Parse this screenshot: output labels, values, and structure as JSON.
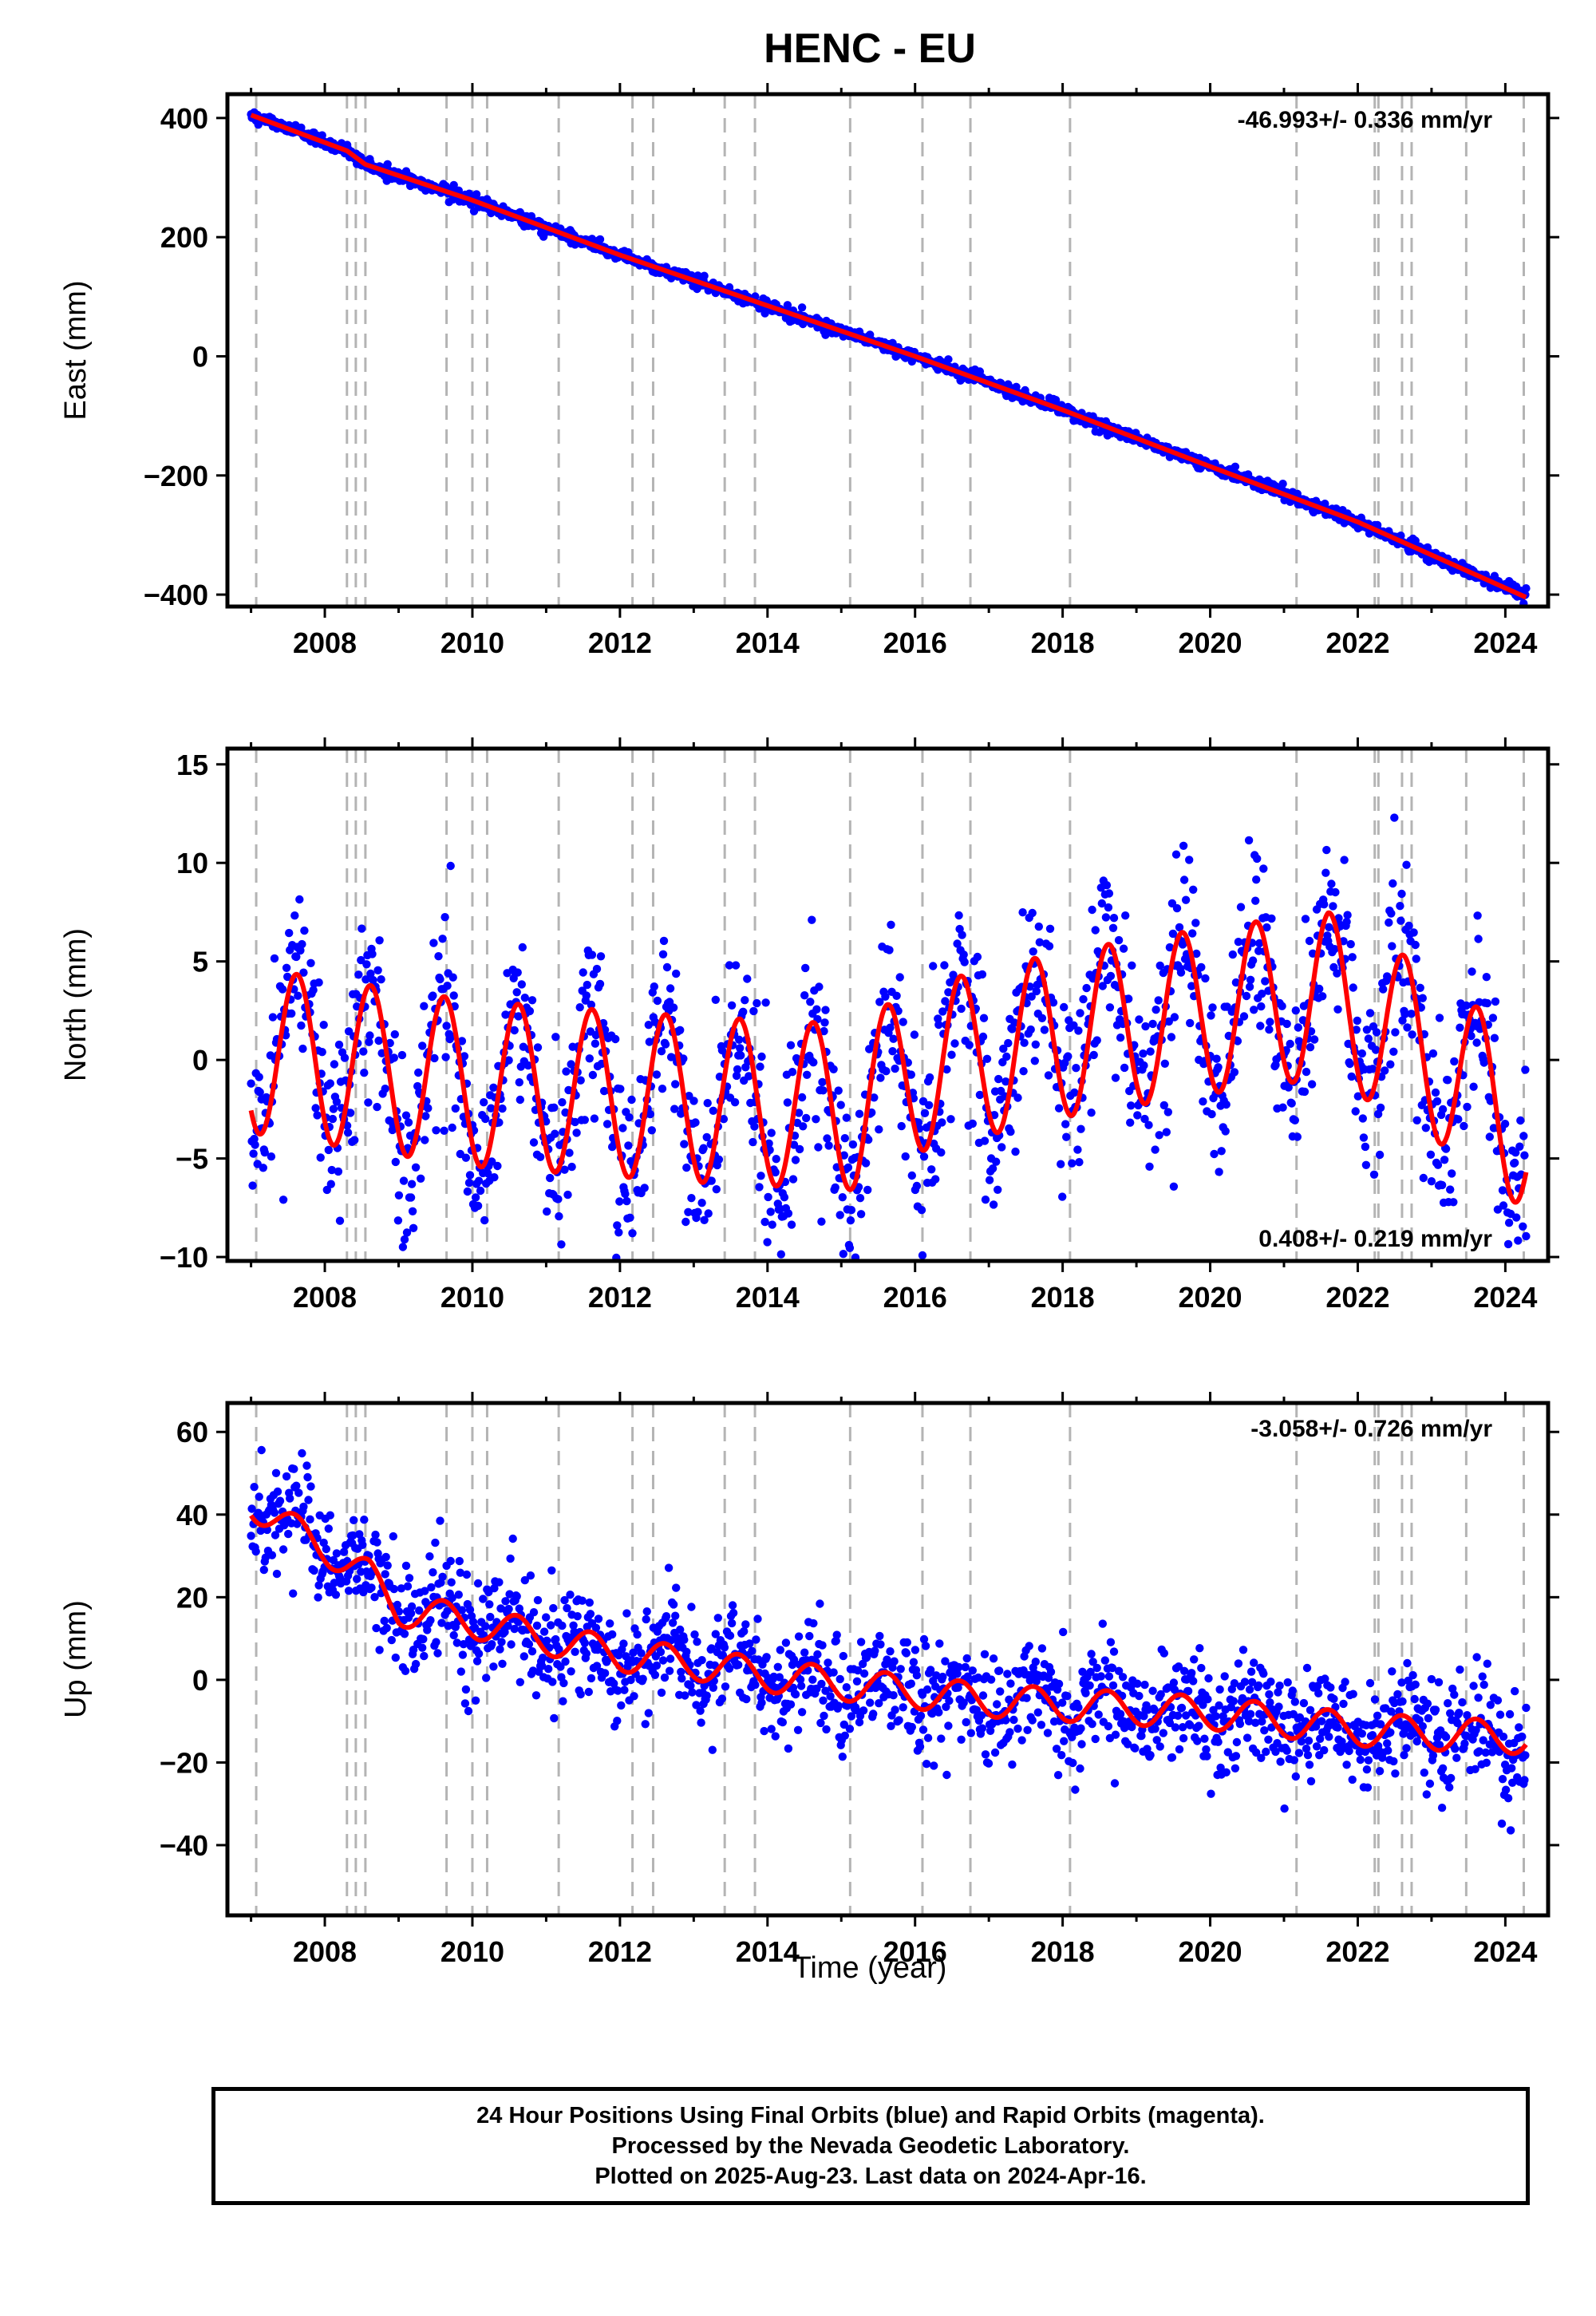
{
  "figure": {
    "title": "HENC - EU",
    "xlabel": "Time (year)"
  },
  "caption": {
    "line1": "24 Hour Positions Using Final Orbits (blue) and Rapid Orbits (magenta).",
    "line2": "Processed by the Nevada Geodetic Laboratory.",
    "line3": "Plotted on 2025-Aug-23. Last data on 2024-Apr-16."
  },
  "colors": {
    "data_points": "#0000ff",
    "model_line": "#ff0000",
    "break_lines": "#b4b4b4",
    "frame": "#000000"
  },
  "chart_data": [
    {
      "type": "scatter",
      "panel": "east",
      "ylabel": "East (mm)",
      "xlim": [
        2006.68,
        2024.58
      ],
      "ylim": [
        -420,
        440
      ],
      "xticks": [
        2008,
        2010,
        2012,
        2014,
        2016,
        2018,
        2020,
        2022,
        2024
      ],
      "yticks": [
        -400,
        -200,
        0,
        200,
        400
      ],
      "rate_label": "-46.993+/- 0.336 mm/yr",
      "rate_label_position": "top-right",
      "data_start": 2007.0,
      "data_end": 2024.29,
      "start_value": 418,
      "end_value": -405,
      "scatter_mm": 5,
      "model_anchors": [
        {
          "x": 2007.0,
          "y": 405
        },
        {
          "x": 2008.3,
          "y": 345
        },
        {
          "x": 2008.55,
          "y": 322
        },
        {
          "x": 2010.0,
          "y": 262
        },
        {
          "x": 2012.0,
          "y": 170
        },
        {
          "x": 2014.0,
          "y": 85
        },
        {
          "x": 2016.0,
          "y": 0
        },
        {
          "x": 2018.0,
          "y": -90
        },
        {
          "x": 2020.0,
          "y": -185
        },
        {
          "x": 2022.0,
          "y": -278
        },
        {
          "x": 2024.29,
          "y": -405
        }
      ]
    },
    {
      "type": "scatter",
      "panel": "north",
      "ylabel": "North (mm)",
      "xlim": [
        2006.68,
        2024.58
      ],
      "ylim": [
        -10.2,
        15.8
      ],
      "xticks": [
        2008,
        2010,
        2012,
        2014,
        2016,
        2018,
        2020,
        2022,
        2024
      ],
      "yticks": [
        -10,
        -5,
        0,
        5,
        10,
        15
      ],
      "rate_label": "0.408+/- 0.219 mm/yr",
      "rate_label_position": "bottom-right",
      "data_start": 2007.0,
      "data_end": 2024.29,
      "seasonal_amplitude_mm": 4.2,
      "seasonal_peak_phase": 0.62,
      "scatter_mm": 2.2,
      "trend_anchors": [
        {
          "x": 2007.0,
          "y": 0.5
        },
        {
          "x": 2010.0,
          "y": -1.2
        },
        {
          "x": 2013.0,
          "y": -2.0
        },
        {
          "x": 2015.2,
          "y": -2.4
        },
        {
          "x": 2016.0,
          "y": -0.5
        },
        {
          "x": 2018.0,
          "y": 1.3
        },
        {
          "x": 2020.0,
          "y": 2.5
        },
        {
          "x": 2021.6,
          "y": 3.3
        },
        {
          "x": 2023.0,
          "y": 0.3
        },
        {
          "x": 2024.29,
          "y": -3.5
        }
      ]
    },
    {
      "type": "scatter",
      "panel": "up",
      "ylabel": "Up (mm)",
      "xlim": [
        2006.68,
        2024.58
      ],
      "ylim": [
        -57,
        67
      ],
      "xticks": [
        2008,
        2010,
        2012,
        2014,
        2016,
        2018,
        2020,
        2022,
        2024
      ],
      "yticks": [
        -40,
        -20,
        0,
        20,
        40,
        60
      ],
      "rate_label": "-3.058+/- 0.726 mm/yr",
      "rate_label_position": "top-right",
      "data_start": 2007.0,
      "data_end": 2024.29,
      "seasonal_amplitude_mm": 4.0,
      "seasonal_peak_phase": 0.6,
      "scatter_mm": 6.5,
      "trend_anchors": [
        {
          "x": 2007.0,
          "y": 43
        },
        {
          "x": 2007.5,
          "y": 37
        },
        {
          "x": 2008.0,
          "y": 32
        },
        {
          "x": 2008.6,
          "y": 25
        },
        {
          "x": 2009.0,
          "y": 17
        },
        {
          "x": 2010.0,
          "y": 14
        },
        {
          "x": 2011.0,
          "y": 10
        },
        {
          "x": 2012.0,
          "y": 6
        },
        {
          "x": 2013.0,
          "y": 4
        },
        {
          "x": 2014.0,
          "y": 1
        },
        {
          "x": 2015.0,
          "y": -1
        },
        {
          "x": 2016.0,
          "y": -3
        },
        {
          "x": 2017.0,
          "y": -5
        },
        {
          "x": 2018.0,
          "y": -6
        },
        {
          "x": 2019.0,
          "y": -7
        },
        {
          "x": 2020.0,
          "y": -8
        },
        {
          "x": 2021.0,
          "y": -10
        },
        {
          "x": 2022.0,
          "y": -12
        },
        {
          "x": 2023.0,
          "y": -13
        },
        {
          "x": 2024.29,
          "y": -14
        }
      ]
    }
  ],
  "equipment_breaks": [
    2007.07,
    2008.3,
    2008.42,
    2008.55,
    2009.65,
    2010.0,
    2010.2,
    2011.17,
    2012.17,
    2012.45,
    2013.42,
    2013.83,
    2015.12,
    2016.1,
    2016.75,
    2018.1,
    2021.17,
    2022.23,
    2022.28,
    2022.6,
    2022.73,
    2023.47,
    2024.25
  ]
}
